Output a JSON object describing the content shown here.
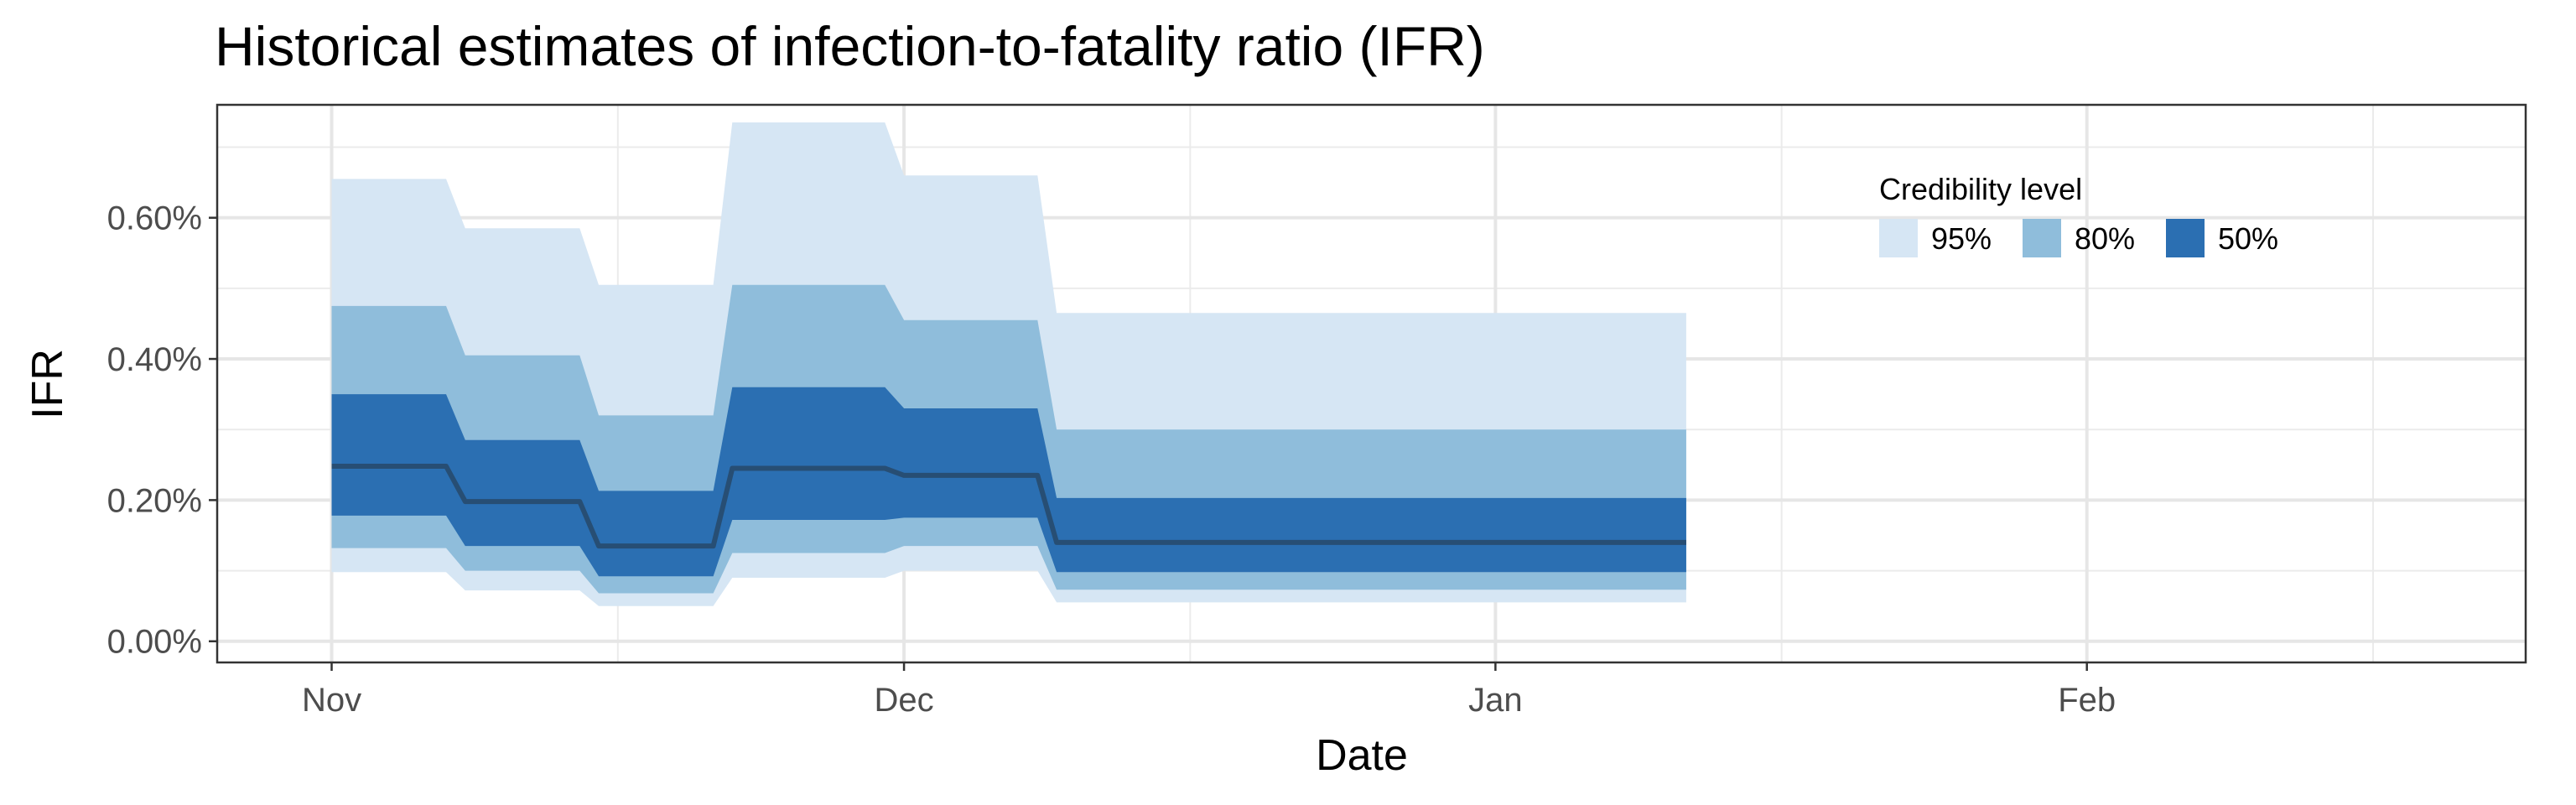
{
  "chart_data": {
    "type": "area",
    "title": "Historical estimates of infection-to-fatality ratio (IFR)",
    "xlabel": "Date",
    "ylabel": "IFR",
    "x_axis": {
      "type": "date",
      "range": [
        "2020-10-26",
        "2021-02-24"
      ],
      "ticks": [
        {
          "date": "2020-11-01",
          "label": "Nov"
        },
        {
          "date": "2020-12-01",
          "label": "Dec"
        },
        {
          "date": "2021-01-01",
          "label": "Jan"
        },
        {
          "date": "2021-02-01",
          "label": "Feb"
        }
      ],
      "minor_grid": [
        "2020-11-16",
        "2020-12-16",
        "2021-01-16",
        "2021-02-16"
      ]
    },
    "y_axis": {
      "range": [
        -0.0003,
        0.0076
      ],
      "ticks": [
        {
          "value": 0.0,
          "label": "0.00%"
        },
        {
          "value": 0.002,
          "label": "0.20%"
        },
        {
          "value": 0.004,
          "label": "0.40%"
        },
        {
          "value": 0.006,
          "label": "0.60%"
        }
      ],
      "minor_grid": [
        0.001,
        0.003,
        0.005,
        0.007
      ]
    },
    "grid": true,
    "legend": {
      "title": "Credibility level",
      "position": "top-right",
      "entries": [
        {
          "label": "95%",
          "color": "#d6e6f4"
        },
        {
          "label": "80%",
          "color": "#8fbddb"
        },
        {
          "label": "50%",
          "color": "#2b6fb2"
        }
      ]
    },
    "median_color": "#274e74",
    "x": [
      "2020-11-01",
      "2020-11-07",
      "2020-11-08",
      "2020-11-14",
      "2020-11-15",
      "2020-11-21",
      "2020-11-22",
      "2020-11-30",
      "2020-12-01",
      "2020-12-08",
      "2020-12-09",
      "2021-01-11"
    ],
    "series": [
      {
        "name": "95%",
        "lower": [
          0.00098,
          0.00098,
          0.00072,
          0.00072,
          0.0005,
          0.0005,
          0.0009,
          0.0009,
          0.001,
          0.001,
          0.00055,
          0.00055
        ],
        "upper": [
          0.00655,
          0.00655,
          0.00585,
          0.00585,
          0.00505,
          0.00505,
          0.00735,
          0.00735,
          0.0066,
          0.0066,
          0.00465,
          0.00465
        ]
      },
      {
        "name": "80%",
        "lower": [
          0.00132,
          0.00132,
          0.001,
          0.001,
          0.00068,
          0.00068,
          0.00125,
          0.00125,
          0.00135,
          0.00135,
          0.00073,
          0.00073
        ],
        "upper": [
          0.00475,
          0.00475,
          0.00405,
          0.00405,
          0.0032,
          0.0032,
          0.00505,
          0.00505,
          0.00455,
          0.00455,
          0.003,
          0.003
        ]
      },
      {
        "name": "50%",
        "lower": [
          0.00178,
          0.00178,
          0.00135,
          0.00135,
          0.00092,
          0.00092,
          0.00172,
          0.00172,
          0.00175,
          0.00175,
          0.00098,
          0.00098
        ],
        "upper": [
          0.0035,
          0.0035,
          0.00285,
          0.00285,
          0.00213,
          0.00213,
          0.0036,
          0.0036,
          0.0033,
          0.0033,
          0.00203,
          0.00203
        ]
      }
    ],
    "median": [
      0.00248,
      0.00248,
      0.00198,
      0.00198,
      0.00135,
      0.00135,
      0.00245,
      0.00245,
      0.00235,
      0.00235,
      0.0014,
      0.0014
    ]
  }
}
